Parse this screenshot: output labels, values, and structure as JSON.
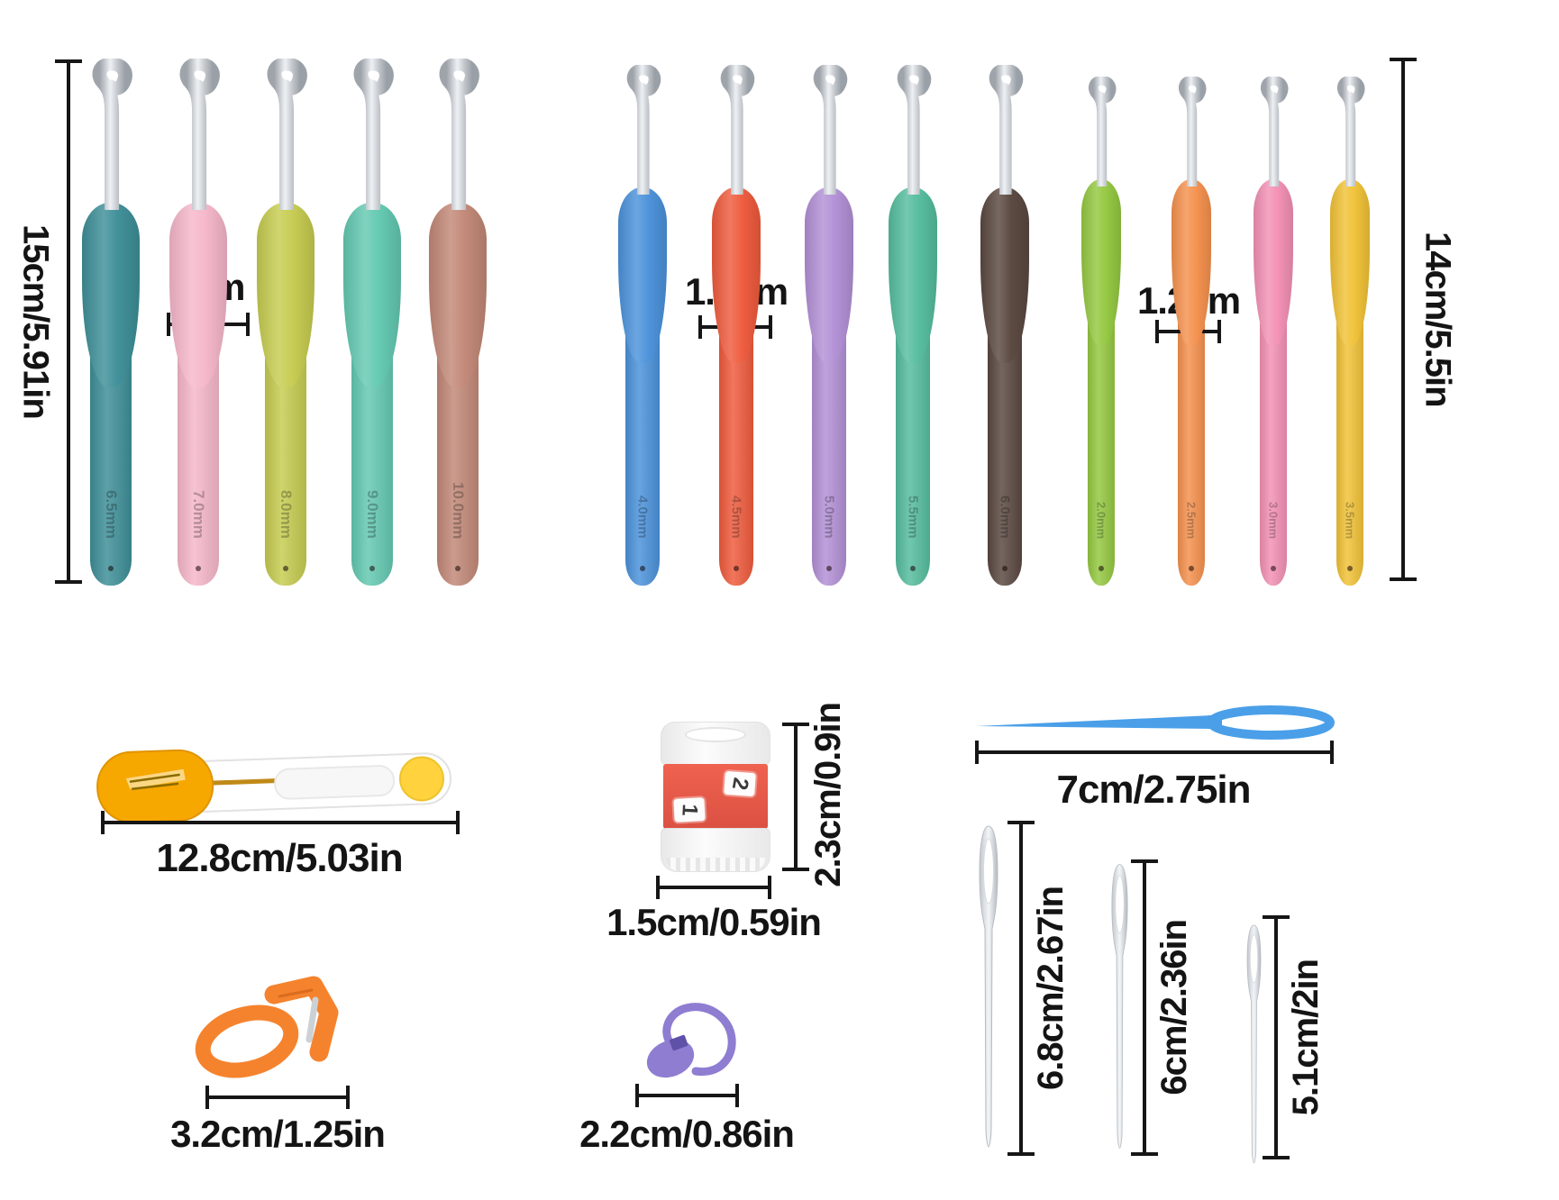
{
  "page": {
    "background": "#ffffff",
    "description": "crochet hook set size diagram"
  },
  "hooks_section": {
    "left_dimension_label": "15cm/5.91in",
    "right_dimension_label": "14cm/5.5in",
    "annotation_2cm": "2cm",
    "annotation_1_5cm": "1.5cm",
    "annotation_1_2cm": "1.2cm",
    "hooks": [
      {
        "size": "6.5mm",
        "color": "#3E8F98",
        "group": "large"
      },
      {
        "size": "7.0mm",
        "color": "#F6B7CA",
        "group": "large"
      },
      {
        "size": "8.0mm",
        "color": "#C6CC50",
        "group": "large"
      },
      {
        "size": "9.0mm",
        "color": "#63C9B1",
        "group": "large"
      },
      {
        "size": "10.0mm",
        "color": "#C28877",
        "group": "large"
      },
      {
        "size": "4.0mm",
        "color": "#4B92DB",
        "group": "medium"
      },
      {
        "size": "4.5mm",
        "color": "#EF5B3D",
        "group": "medium"
      },
      {
        "size": "5.0mm",
        "color": "#B290D6",
        "group": "medium"
      },
      {
        "size": "5.5mm",
        "color": "#55BD9D",
        "group": "medium"
      },
      {
        "size": "6.0mm",
        "color": "#5A4840",
        "group": "medium"
      },
      {
        "size": "2.0mm",
        "color": "#94C840",
        "group": "small"
      },
      {
        "size": "2.5mm",
        "color": "#F5914E",
        "group": "small"
      },
      {
        "size": "3.0mm",
        "color": "#F390B4",
        "group": "small"
      },
      {
        "size": "3.5mm",
        "color": "#F1C237",
        "group": "small"
      }
    ]
  },
  "accessories": {
    "scissors": {
      "name": "yarn scissors",
      "length_label": "12.8cm/5.03in",
      "cap_color": "#F6A700",
      "button_color": "#FFD23E"
    },
    "stitch_counter": {
      "name": "row counter",
      "height_label": "2.3cm/0.9in",
      "width_label": "1.5cm/0.59in",
      "digit_top": "2",
      "digit_bottom": "1",
      "band_color": "#EE5847"
    },
    "yarn_needle": {
      "name": "plastic yarn needle",
      "length_label": "7cm/2.75in",
      "color": "#4A9FE8"
    },
    "thimble_cutter": {
      "name": "yarn cutter thimble",
      "width_label": "3.2cm/1.25in",
      "color": "#F5832E"
    },
    "stitch_marker": {
      "name": "locking stitch marker",
      "width_label": "2.2cm/0.86in",
      "color": "#8E7DD1"
    },
    "tapestry_needles": [
      {
        "length_label": "6.8cm/2.67in"
      },
      {
        "length_label": "6cm/2.36in"
      },
      {
        "length_label": "5.1cm/2in"
      }
    ]
  }
}
